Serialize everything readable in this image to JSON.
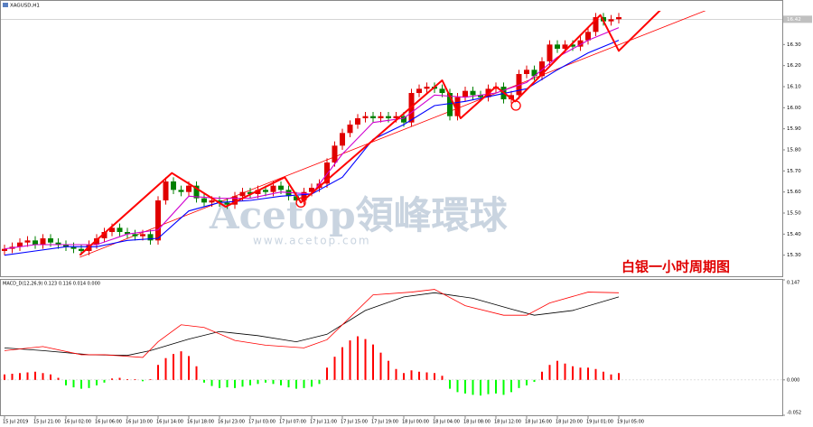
{
  "chart_data": [
    {
      "type": "candlestick",
      "title": "XAGUSD,H1",
      "annotation": "白银一小时周期图",
      "watermark": "Acetop領峰環球",
      "watermark_url": "www.acetop.com",
      "categories": [
        "15 Jul 2019",
        null,
        null,
        null,
        "15 Jul 21:00",
        null,
        null,
        null,
        "16 Jul 02:00",
        null,
        null,
        null,
        "16 Jul 06:00",
        null,
        null,
        null,
        "16 Jul 10:00",
        null,
        null,
        null,
        "16 Jul 14:00",
        null,
        null,
        null,
        "16 Jul 18:00",
        null,
        null,
        null,
        "16 Jul 23:00",
        null,
        null,
        null,
        "17 Jul 03:00",
        null,
        null,
        null,
        "17 Jul 07:00",
        null,
        null,
        null,
        "17 Jul 11:00",
        null,
        null,
        null,
        "17 Jul 15:00",
        null,
        null,
        null,
        "17 Jul 19:00",
        null,
        null,
        null,
        "18 Jul 00:00",
        null,
        null,
        null,
        "18 Jul 04:00",
        null,
        null,
        null,
        "18 Jul 08:00",
        null,
        null,
        null,
        "18 Jul 12:00",
        null,
        null,
        null,
        "18 Jul 16:00",
        null,
        null,
        null,
        "18 Jul 20:00",
        null,
        null,
        null,
        "19 Jul 01:00",
        null,
        null,
        null,
        "19 Jul 05:00"
      ],
      "open": [
        15.32,
        15.33,
        15.34,
        15.36,
        15.37,
        15.35,
        15.38,
        15.36,
        15.35,
        15.34,
        15.33,
        15.32,
        15.35,
        15.38,
        15.41,
        15.43,
        15.41,
        15.4,
        15.39,
        15.4,
        15.37,
        15.56,
        15.65,
        15.61,
        15.6,
        15.63,
        15.57,
        15.55,
        15.56,
        15.55,
        15.54,
        15.58,
        15.6,
        15.59,
        15.61,
        15.6,
        15.63,
        15.61,
        15.58,
        15.56,
        15.6,
        15.62,
        15.64,
        15.74,
        15.82,
        15.88,
        15.92,
        15.95,
        15.96,
        15.95,
        15.96,
        15.95,
        15.96,
        15.93,
        16.07,
        16.09,
        16.1,
        16.09,
        16.07,
        15.96,
        16.05,
        16.08,
        16.06,
        16.05,
        16.09,
        16.1,
        16.04,
        16.06,
        16.16,
        16.18,
        16.15,
        16.22,
        16.3,
        16.28,
        16.3,
        16.29,
        16.32,
        16.36,
        16.43,
        16.41,
        16.42
      ],
      "high": [
        15.35,
        15.36,
        15.38,
        15.39,
        15.39,
        15.4,
        15.4,
        15.38,
        15.37,
        15.36,
        15.35,
        15.37,
        15.4,
        15.43,
        15.45,
        15.45,
        15.43,
        15.42,
        15.42,
        15.42,
        15.58,
        15.67,
        15.67,
        15.63,
        15.65,
        15.65,
        15.59,
        15.58,
        15.58,
        15.57,
        15.6,
        15.62,
        15.62,
        15.63,
        15.63,
        15.65,
        15.65,
        15.63,
        15.6,
        15.62,
        15.64,
        15.66,
        15.76,
        15.84,
        15.9,
        15.94,
        15.97,
        15.98,
        15.98,
        15.98,
        15.98,
        15.98,
        15.98,
        16.09,
        16.11,
        16.12,
        16.12,
        16.11,
        16.09,
        16.07,
        16.1,
        16.1,
        16.08,
        16.11,
        16.12,
        16.12,
        16.08,
        16.18,
        16.2,
        16.2,
        16.24,
        16.32,
        16.32,
        16.32,
        16.32,
        16.34,
        16.38,
        16.45,
        16.45,
        16.44,
        16.45
      ],
      "low": [
        15.3,
        15.31,
        15.32,
        15.34,
        15.33,
        15.33,
        15.34,
        15.33,
        15.32,
        15.31,
        15.3,
        15.3,
        15.33,
        15.36,
        15.39,
        15.39,
        15.38,
        15.37,
        15.37,
        15.35,
        15.35,
        15.54,
        15.59,
        15.58,
        15.58,
        15.55,
        15.53,
        15.53,
        15.53,
        15.52,
        15.52,
        15.56,
        15.57,
        15.57,
        15.58,
        15.58,
        15.59,
        15.56,
        15.54,
        15.54,
        15.58,
        15.6,
        15.62,
        15.72,
        15.8,
        15.86,
        15.9,
        15.93,
        15.93,
        15.93,
        15.93,
        15.93,
        15.91,
        15.91,
        16.05,
        16.07,
        16.07,
        16.05,
        15.94,
        15.94,
        16.03,
        16.04,
        16.03,
        16.03,
        16.07,
        16.02,
        16.02,
        16.04,
        16.14,
        16.13,
        16.13,
        16.2,
        16.26,
        16.26,
        16.27,
        16.27,
        16.3,
        16.34,
        16.39,
        16.39,
        16.4
      ],
      "close": [
        15.33,
        15.34,
        15.36,
        15.37,
        15.35,
        15.38,
        15.36,
        15.35,
        15.34,
        15.33,
        15.32,
        15.35,
        15.38,
        15.41,
        15.43,
        15.41,
        15.4,
        15.39,
        15.4,
        15.37,
        15.56,
        15.65,
        15.61,
        15.6,
        15.63,
        15.57,
        15.55,
        15.56,
        15.55,
        15.54,
        15.58,
        15.6,
        15.59,
        15.61,
        15.6,
        15.63,
        15.61,
        15.58,
        15.56,
        15.6,
        15.62,
        15.64,
        15.74,
        15.82,
        15.88,
        15.92,
        15.95,
        15.96,
        15.95,
        15.96,
        15.95,
        15.96,
        15.93,
        16.07,
        16.09,
        16.1,
        16.09,
        16.07,
        15.96,
        16.05,
        16.08,
        16.06,
        16.05,
        16.09,
        16.1,
        16.04,
        16.06,
        16.16,
        16.18,
        16.15,
        16.22,
        16.3,
        16.28,
        16.3,
        16.29,
        16.32,
        16.36,
        16.43,
        16.41,
        16.42,
        16.43
      ],
      "up_color": "#e00000",
      "down_color": "#008000",
      "ylim": [
        15.2,
        16.46
      ],
      "yticks": [
        {
          "value": 15.3,
          "label": "15.30"
        },
        {
          "value": 15.4,
          "label": "15.40"
        },
        {
          "value": 15.5,
          "label": "15.50"
        },
        {
          "value": 15.6,
          "label": "15.60"
        },
        {
          "value": 15.7,
          "label": "15.70"
        },
        {
          "value": 15.8,
          "label": "15.80"
        },
        {
          "value": 15.9,
          "label": "15.90"
        },
        {
          "value": 16,
          "label": "16.00"
        },
        {
          "value": 16.1,
          "label": "16.10"
        },
        {
          "value": 16.2,
          "label": "16.20"
        },
        {
          "value": 16.3,
          "label": "16.30"
        }
      ],
      "last_price": {
        "value": 16.42,
        "label": "16.42"
      },
      "series": [
        {
          "color": "#d000d0",
          "x": [
            0,
            4,
            8,
            12,
            16,
            20,
            24,
            28,
            32,
            36,
            40,
            44,
            48,
            52,
            56,
            60,
            64,
            68,
            72,
            76,
            80
          ],
          "values": [
            15.33,
            15.35,
            15.35,
            15.35,
            15.4,
            15.42,
            15.58,
            15.57,
            15.57,
            15.6,
            15.59,
            15.78,
            15.93,
            15.95,
            16.06,
            16.05,
            16.07,
            16.12,
            16.24,
            16.32,
            16.38
          ]
        },
        {
          "color": "#0000ff",
          "x": [
            0,
            4,
            8,
            12,
            16,
            20,
            24,
            28,
            32,
            36,
            40,
            44,
            48,
            52,
            56,
            60,
            64,
            68,
            72,
            76,
            80
          ],
          "values": [
            15.3,
            15.32,
            15.34,
            15.34,
            15.37,
            15.38,
            15.51,
            15.55,
            15.56,
            15.58,
            15.59,
            15.67,
            15.85,
            15.92,
            16.01,
            16.03,
            16.06,
            16.09,
            16.18,
            16.26,
            16.32
          ]
        }
      ],
      "zigzag": {
        "color": "#ff0000",
        "x": [
          9.8,
          21.8,
          28.8,
          36.5,
          38.6,
          57,
          59.4,
          64,
          66.5,
          77.6,
          80,
          87
        ],
        "values": [
          15.3,
          15.69,
          15.53,
          15.67,
          15.55,
          16.13,
          15.95,
          16.1,
          16.03,
          16.44,
          16.27,
          16.52
        ]
      },
      "trendline": {
        "color": "#ff0000",
        "x": [
          9.8,
          94
        ],
        "values": [
          15.29,
          16.5
        ]
      },
      "circles": {
        "color": "#ff0000",
        "x": [
          38.6,
          66.6
        ],
        "values": [
          15.55,
          16.01
        ]
      }
    },
    {
      "type": "macd",
      "title": "MACD_D(12,26,9) 0.123 0.116 0.014 0.000",
      "histogram": [
        0.008,
        0.009,
        0.01,
        0.011,
        0.012,
        0.01,
        0.008,
        0.003,
        -0.008,
        -0.011,
        -0.013,
        -0.012,
        -0.008,
        -0.004,
        0.002,
        0.003,
        0.001,
        0.001,
        -0.002,
        0.001,
        0.022,
        0.032,
        0.038,
        0.042,
        0.035,
        0.02,
        -0.004,
        -0.009,
        -0.012,
        -0.011,
        -0.012,
        -0.01,
        -0.008,
        -0.006,
        -0.004,
        -0.006,
        -0.008,
        -0.011,
        -0.013,
        -0.012,
        -0.01,
        -0.006,
        0.018,
        0.034,
        0.048,
        0.058,
        0.064,
        0.06,
        0.052,
        0.04,
        0.028,
        0.016,
        0.01,
        0.014,
        0.012,
        0.011,
        0.01,
        0.006,
        -0.013,
        -0.018,
        -0.02,
        -0.022,
        -0.023,
        -0.021,
        -0.02,
        -0.022,
        -0.018,
        -0.012,
        -0.008,
        -0.003,
        0.012,
        0.022,
        0.028,
        0.024,
        0.02,
        0.018,
        0.018,
        0.016,
        0.012,
        0.008,
        0.01
      ],
      "up_color": "#ff0000",
      "down_color": "#00ff00",
      "series": [
        {
          "color": "#000000",
          "x": [
            0,
            5,
            11,
            16,
            19,
            24,
            28,
            33,
            38,
            42,
            47,
            52,
            56,
            61,
            66,
            69,
            74,
            80
          ],
          "values": [
            0.047,
            0.043,
            0.037,
            0.036,
            0.043,
            0.06,
            0.071,
            0.065,
            0.056,
            0.067,
            0.102,
            0.122,
            0.128,
            0.12,
            0.104,
            0.095,
            0.102,
            0.122
          ]
        },
        {
          "color": "#ff0000",
          "x": [
            0,
            5,
            10,
            13,
            18,
            20,
            23,
            26,
            30,
            34,
            39,
            42,
            45,
            48,
            53,
            56,
            60,
            65,
            68,
            71,
            76,
            80
          ],
          "values": [
            0.043,
            0.049,
            0.037,
            0.037,
            0.033,
            0.056,
            0.081,
            0.077,
            0.058,
            0.051,
            0.047,
            0.059,
            0.092,
            0.125,
            0.129,
            0.133,
            0.109,
            0.095,
            0.095,
            0.113,
            0.129,
            0.128
          ]
        }
      ],
      "ylim": [
        -0.052,
        0.147
      ],
      "yticks": [
        -0.052,
        {
          "value": 0,
          "label": "0.000"
        },
        0.147
      ]
    }
  ]
}
